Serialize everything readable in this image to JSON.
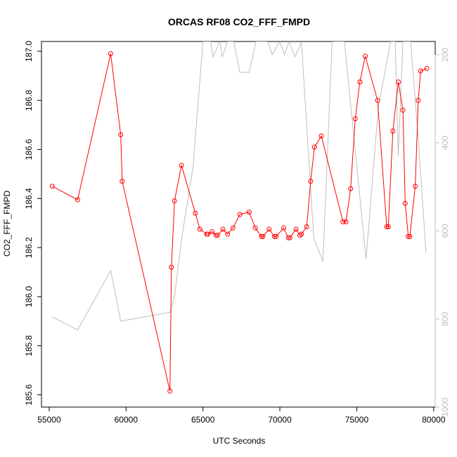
{
  "chart_data": {
    "type": "line",
    "title": "ORCAS RF08 CO2_FFF_FMPD",
    "xlabel": "UTC Seconds",
    "ylabel": "CO2_FFF_FMPD",
    "xlim": [
      54500,
      80100
    ],
    "ylim": [
      185.55,
      187.04
    ],
    "y2lim": [
      1000,
      170
    ],
    "y2_reversed": true,
    "x_ticks": [
      "55000",
      "60000",
      "65000",
      "70000",
      "75000",
      "80000"
    ],
    "y_ticks": [
      "185.6",
      "185.8",
      "186.0",
      "186.2",
      "186.4",
      "186.6",
      "186.8",
      "187.0"
    ],
    "y2_ticks": [
      "200",
      "400",
      "600",
      "800",
      "1000"
    ],
    "grid": false,
    "series": [
      {
        "color": "#ff0000",
        "marker": "open-circle",
        "axis": "left",
        "x": [
          55200,
          56850,
          59000,
          59650,
          59750,
          62850,
          62950,
          63150,
          63600,
          64500,
          64800,
          65250,
          65300,
          65600,
          65850,
          65950,
          66300,
          66600,
          66950,
          67400,
          68000,
          68400,
          68800,
          68900,
          69300,
          69650,
          69750,
          70250,
          70550,
          70650,
          71050,
          71300,
          71400,
          71750,
          72000,
          72250,
          72700,
          74100,
          74300,
          74600,
          74900,
          75200,
          75550,
          76350,
          76950,
          77050,
          77350,
          77700,
          78000,
          78150,
          78350,
          78450,
          78800,
          79000,
          79150,
          79550
        ],
        "y": [
          186.45,
          186.395,
          186.99,
          186.66,
          186.47,
          185.615,
          186.12,
          186.39,
          186.535,
          186.34,
          186.275,
          186.255,
          186.255,
          186.265,
          186.25,
          186.25,
          186.275,
          186.255,
          186.28,
          186.335,
          186.345,
          186.28,
          186.245,
          186.245,
          186.275,
          186.245,
          186.245,
          186.28,
          186.24,
          186.24,
          186.275,
          186.25,
          186.255,
          186.285,
          186.47,
          186.61,
          186.655,
          186.305,
          186.305,
          186.44,
          186.725,
          186.875,
          186.98,
          186.8,
          186.285,
          186.285,
          186.675,
          186.875,
          186.76,
          186.38,
          186.245,
          186.245,
          186.45,
          186.8,
          186.92,
          186.93
        ]
      },
      {
        "color": "#bebebe",
        "marker": "none",
        "axis": "right",
        "x": [
          55200,
          56850,
          59000,
          59650,
          62850,
          63150,
          63600,
          64350,
          65000,
          65500,
          65650,
          66100,
          66250,
          66600,
          67000,
          67400,
          68000,
          68450,
          69200,
          69500,
          70000,
          70300,
          70600,
          71000,
          71400,
          72200,
          72800,
          73400,
          74200,
          75600,
          76400,
          77200,
          77500,
          77700,
          78000,
          78500,
          79000,
          79500
        ],
        "y": [
          795,
          825,
          690,
          805,
          785,
          750,
          620,
          455,
          170,
          170,
          205,
          170,
          205,
          170,
          170,
          240,
          240,
          170,
          170,
          200,
          170,
          200,
          170,
          205,
          170,
          615,
          670,
          170,
          170,
          665,
          320,
          170,
          170,
          430,
          170,
          170,
          390,
          650
        ]
      }
    ]
  }
}
